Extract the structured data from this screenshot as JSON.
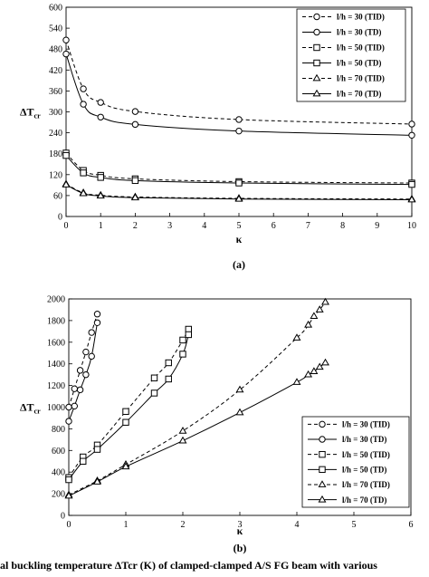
{
  "caption": "al buckling temperature ΔTcr (K) of clamped-clamped A/S FG beam with various",
  "chart_data": [
    {
      "type": "line",
      "panel_label": "(a)",
      "xlabel": "κ",
      "ylabel": "ΔTcr",
      "xlim": [
        0,
        10
      ],
      "ylim": [
        0,
        600
      ],
      "xticks": [
        0,
        1,
        2,
        3,
        4,
        5,
        6,
        7,
        8,
        9,
        10
      ],
      "yticks": [
        0,
        60,
        120,
        180,
        240,
        300,
        360,
        420,
        480,
        540,
        600
      ],
      "grid": false,
      "legend_position": "top-right",
      "series": [
        {
          "name": "l/h = 30 (TID)",
          "marker": "circle-open",
          "dash": "dashed",
          "x": [
            0,
            0.5,
            1,
            2,
            5,
            10
          ],
          "y": [
            506,
            366,
            327,
            301,
            278,
            265
          ]
        },
        {
          "name": "l/h = 30 (TD)",
          "marker": "circle-open",
          "dash": "solid",
          "x": [
            0,
            0.5,
            1,
            2,
            5,
            10
          ],
          "y": [
            466,
            322,
            285,
            264,
            245,
            233
          ]
        },
        {
          "name": "l/h = 50 (TID)",
          "marker": "square-open",
          "dash": "dashed",
          "x": [
            0,
            0.5,
            1,
            2,
            5,
            10
          ],
          "y": [
            182,
            132,
            118,
            108,
            100,
            96
          ]
        },
        {
          "name": "l/h = 50 (TD)",
          "marker": "square-open",
          "dash": "solid",
          "x": [
            0,
            0.5,
            1,
            2,
            5,
            10
          ],
          "y": [
            175,
            125,
            112,
            103,
            96,
            92
          ]
        },
        {
          "name": "l/h = 70 (TID)",
          "marker": "triangle-open",
          "dash": "dashed",
          "x": [
            0,
            0.5,
            1,
            2,
            5,
            10
          ],
          "y": [
            93,
            68,
            61,
            56,
            52,
            50
          ]
        },
        {
          "name": "l/h = 70 (TD)",
          "marker": "triangle-open",
          "dash": "solid",
          "x": [
            0,
            0.5,
            1,
            2,
            5,
            10
          ],
          "y": [
            91,
            66,
            59,
            54,
            50,
            48
          ]
        }
      ]
    },
    {
      "type": "line",
      "panel_label": "(b)",
      "xlabel": "κ",
      "ylabel": "ΔTcr",
      "xlim": [
        0,
        6
      ],
      "ylim": [
        0,
        2000
      ],
      "xticks": [
        0,
        1,
        2,
        3,
        4,
        5,
        6
      ],
      "yticks": [
        0,
        200,
        400,
        600,
        800,
        1000,
        1200,
        1400,
        1600,
        1800,
        2000
      ],
      "grid": false,
      "legend_position": "bottom-right",
      "series": [
        {
          "name": "l/h = 30 (TID)",
          "marker": "circle-open",
          "dash": "dashed",
          "x": [
            0,
            0.1,
            0.2,
            0.3,
            0.4,
            0.5
          ],
          "y": [
            1000,
            1170,
            1340,
            1510,
            1690,
            1860
          ]
        },
        {
          "name": "l/h = 30 (TD)",
          "marker": "circle-open",
          "dash": "solid",
          "x": [
            0,
            0.1,
            0.2,
            0.3,
            0.4,
            0.5
          ],
          "y": [
            870,
            1010,
            1160,
            1300,
            1470,
            1780
          ]
        },
        {
          "name": "l/h = 50 (TID)",
          "marker": "square-open",
          "dash": "dashed",
          "x": [
            0,
            0.25,
            0.5,
            1,
            1.5,
            1.75,
            2,
            2.1
          ],
          "y": [
            350,
            540,
            650,
            960,
            1270,
            1410,
            1620,
            1720
          ]
        },
        {
          "name": "l/h = 50 (TD)",
          "marker": "square-open",
          "dash": "solid",
          "x": [
            0,
            0.25,
            0.5,
            1,
            1.5,
            1.75,
            2,
            2.1
          ],
          "y": [
            330,
            500,
            610,
            860,
            1130,
            1260,
            1490,
            1670
          ]
        },
        {
          "name": "l/h = 70 (TID)",
          "marker": "triangle-open",
          "dash": "dashed",
          "x": [
            0,
            0.5,
            1,
            2,
            3,
            4,
            4.2,
            4.3,
            4.4,
            4.5
          ],
          "y": [
            190,
            320,
            470,
            780,
            1160,
            1640,
            1760,
            1840,
            1900,
            1970
          ]
        },
        {
          "name": "l/h = 70 (TD)",
          "marker": "triangle-open",
          "dash": "solid",
          "x": [
            0,
            0.5,
            1,
            2,
            3,
            4,
            4.2,
            4.3,
            4.4,
            4.5
          ],
          "y": [
            180,
            310,
            450,
            690,
            950,
            1230,
            1300,
            1330,
            1370,
            1410
          ]
        }
      ]
    }
  ]
}
